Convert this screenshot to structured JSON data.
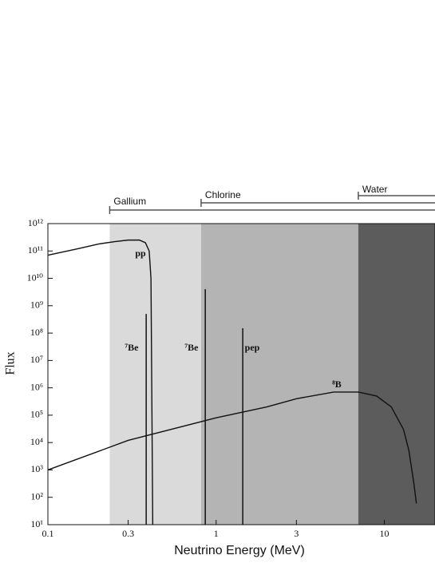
{
  "chart_data": {
    "type": "line",
    "xlabel": "Neutrino Energy (MeV)",
    "ylabel": "Flux",
    "log_x": true,
    "log_y": true,
    "xlim": [
      0.1,
      20
    ],
    "ylim": [
      10,
      1000000000000.0
    ],
    "xticks": [
      0.1,
      0.3,
      1,
      3,
      10
    ],
    "yticks": [
      {
        "value": 10,
        "label": "10¹"
      },
      {
        "value": 100,
        "label": "10²"
      },
      {
        "value": 1000,
        "label": "10³"
      },
      {
        "value": 10000,
        "label": "10⁴"
      },
      {
        "value": 100000,
        "label": "10⁵"
      },
      {
        "value": 1000000,
        "label": "10⁶"
      },
      {
        "value": 10000000,
        "label": "10⁷"
      },
      {
        "value": 100000000,
        "label": "10⁸"
      },
      {
        "value": 1000000000,
        "label": "10⁹"
      },
      {
        "value": 10000000000,
        "label": "10¹⁰"
      },
      {
        "value": 100000000000,
        "label": "10¹¹"
      },
      {
        "value": 1000000000000,
        "label": "10¹²"
      }
    ],
    "regions": [
      {
        "name": "Gallium",
        "start": 0.233,
        "color": "#dadada"
      },
      {
        "name": "Chlorine",
        "start": 0.814,
        "color": "#b4b4b4"
      },
      {
        "name": "Water",
        "start": 7,
        "color": "#5c5c5c"
      }
    ],
    "series": [
      {
        "name": "pp",
        "color": "#111111",
        "x": [
          0.1,
          0.15,
          0.2,
          0.25,
          0.3,
          0.35,
          0.38,
          0.4,
          0.41,
          0.42
        ],
        "values": [
          70000000000,
          120000000000,
          180000000000,
          220000000000,
          250000000000,
          250000000000,
          200000000000,
          100000000000,
          10000000000,
          10
        ]
      },
      {
        "name": "⁸B",
        "color": "#111111",
        "x": [
          0.1,
          0.3,
          1,
          2,
          3,
          5,
          7,
          9,
          11,
          13,
          14,
          15,
          15.5
        ],
        "values": [
          1000,
          12000,
          80000,
          200000,
          400000,
          700000,
          700000,
          500000,
          200000,
          30000,
          5000,
          300,
          60
        ]
      }
    ],
    "lines": [
      {
        "name": "⁷Be",
        "x": 0.384,
        "value": 500000000
      },
      {
        "name": "⁷Be",
        "x": 0.862,
        "value": 4000000000
      },
      {
        "name": "pep",
        "x": 1.44,
        "value": 150000000
      }
    ]
  }
}
